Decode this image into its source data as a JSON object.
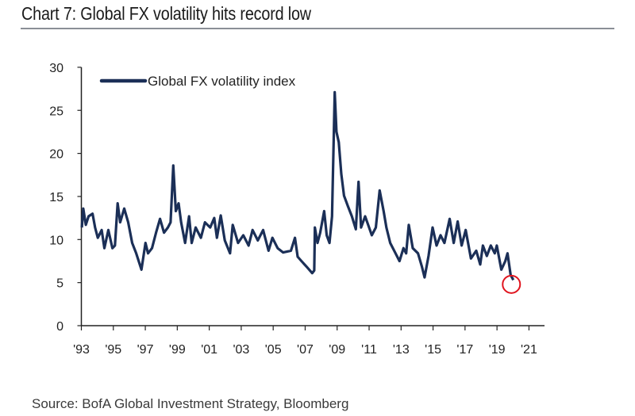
{
  "chart_data": {
    "type": "line",
    "title": "Chart 7: Global FX volatility hits record low",
    "source": "Source: BofA Global Investment Strategy, Bloomberg",
    "xlabel": "",
    "ylabel": "",
    "xlim": [
      1993,
      2021.5
    ],
    "ylim": [
      0,
      30
    ],
    "yticks": [
      0,
      5,
      10,
      15,
      20,
      25,
      30
    ],
    "xticks": [
      1993,
      1995,
      1997,
      1999,
      2001,
      2003,
      2005,
      2007,
      2009,
      2011,
      2013,
      2015,
      2017,
      2019,
      2021
    ],
    "xtick_labels": [
      "'93",
      "'95",
      "'97",
      "'99",
      "'01",
      "'03",
      "'05",
      "'07",
      "'09",
      "'11",
      "'13",
      "'15",
      "'17",
      "'19",
      "'21"
    ],
    "grid": false,
    "legend": {
      "placement": "top-left",
      "entries": [
        "Global FX volatility index"
      ]
    },
    "colors": {
      "series": "#1b2f57",
      "highlight": "#e0141e",
      "rule": "#8a8f96"
    },
    "annotations": [
      {
        "type": "circle",
        "x": 2019.9,
        "y": 4.8,
        "note": "record low highlight"
      }
    ],
    "series": [
      {
        "name": "Global FX volatility index",
        "x": [
          1993.03,
          1993.12,
          1993.28,
          1993.45,
          1993.7,
          1993.86,
          1994.03,
          1994.27,
          1994.44,
          1994.69,
          1994.94,
          1995.1,
          1995.27,
          1995.43,
          1995.68,
          1995.93,
          1996.18,
          1996.43,
          1996.76,
          1997.01,
          1997.17,
          1997.42,
          1997.67,
          1997.92,
          1998.17,
          1998.41,
          1998.58,
          1998.75,
          1998.91,
          1999.08,
          1999.24,
          1999.49,
          1999.74,
          1999.9,
          2000.15,
          2000.48,
          2000.73,
          2001.06,
          2001.31,
          2001.48,
          2001.72,
          2001.97,
          2002.3,
          2002.47,
          2002.8,
          2003.13,
          2003.46,
          2003.71,
          2004.04,
          2004.37,
          2004.71,
          2004.95,
          2005.28,
          2005.62,
          2006.11,
          2006.36,
          2006.53,
          2006.77,
          2007.11,
          2007.44,
          2007.57,
          2007.61,
          2007.77,
          2007.94,
          2008.19,
          2008.35,
          2008.52,
          2008.68,
          2008.85,
          2008.96,
          2009.1,
          2009.26,
          2009.43,
          2009.67,
          2009.92,
          2010.17,
          2010.34,
          2010.5,
          2010.75,
          2011.0,
          2011.17,
          2011.42,
          2011.66,
          2011.91,
          2012.08,
          2012.32,
          2012.65,
          2012.9,
          2013.15,
          2013.32,
          2013.48,
          2013.73,
          2014.06,
          2014.31,
          2014.47,
          2014.72,
          2014.97,
          2015.22,
          2015.47,
          2015.71,
          2016.04,
          2016.29,
          2016.54,
          2016.79,
          2017.04,
          2017.37,
          2017.7,
          2017.95,
          2018.12,
          2018.36,
          2018.61,
          2018.86,
          2018.99,
          2019.27,
          2019.52,
          2019.66,
          2019.85,
          2020.02
        ],
        "y": [
          11.4,
          13.6,
          11.7,
          12.7,
          13.0,
          11.4,
          10.2,
          11.1,
          9.0,
          11.1,
          9.0,
          9.3,
          14.2,
          12.0,
          13.6,
          12.0,
          9.6,
          8.4,
          6.5,
          9.6,
          8.4,
          9.0,
          10.8,
          12.4,
          10.8,
          11.4,
          12.0,
          18.6,
          13.3,
          14.2,
          12.0,
          9.6,
          12.7,
          9.6,
          11.4,
          10.2,
          12.0,
          11.4,
          12.5,
          10.2,
          12.8,
          9.9,
          8.4,
          11.7,
          9.6,
          10.5,
          9.3,
          11.1,
          9.9,
          11.1,
          8.7,
          10.2,
          9.0,
          8.5,
          8.7,
          10.2,
          8.0,
          7.5,
          6.8,
          6.1,
          6.4,
          11.4,
          9.6,
          10.8,
          13.3,
          10.5,
          9.6,
          12.7,
          27.1,
          22.5,
          21.3,
          17.6,
          15.1,
          13.9,
          12.7,
          11.2,
          16.7,
          11.4,
          12.7,
          11.4,
          10.5,
          11.4,
          15.7,
          13.3,
          11.4,
          9.6,
          8.4,
          7.5,
          9.0,
          8.4,
          11.7,
          9.0,
          8.4,
          6.8,
          5.6,
          8.1,
          11.4,
          9.3,
          10.5,
          9.6,
          12.4,
          9.6,
          12.1,
          9.3,
          11.1,
          7.8,
          8.7,
          7.1,
          9.3,
          8.1,
          9.3,
          8.4,
          9.3,
          6.5,
          7.5,
          8.4,
          5.9,
          5.3
        ]
      }
    ]
  }
}
